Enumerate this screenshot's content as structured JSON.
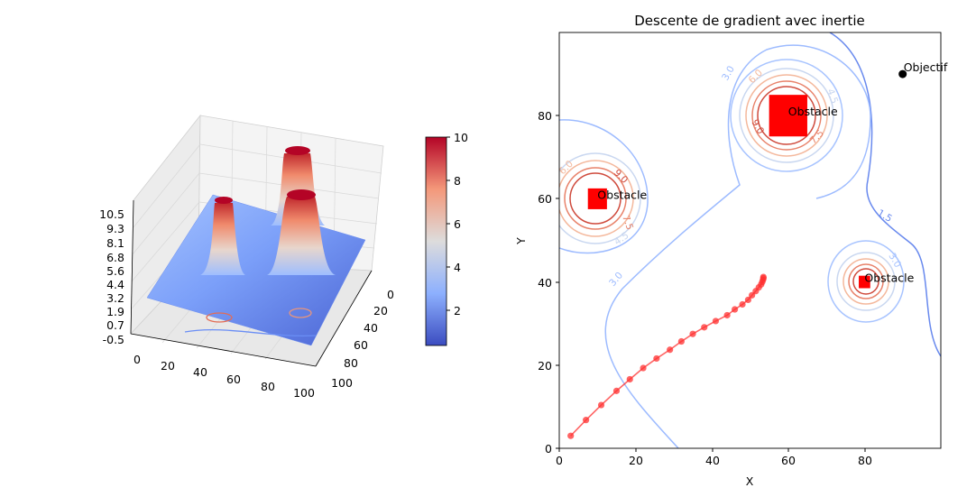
{
  "chart_data": [
    {
      "type": "surface3d",
      "title": "",
      "z_ticks": [
        "10.5",
        "9.3",
        "8.1",
        "6.8",
        "5.6",
        "4.4",
        "3.2",
        "1.9",
        "0.7",
        "-0.5"
      ],
      "x_ticks": [
        "0",
        "20",
        "40",
        "60",
        "80",
        "100"
      ],
      "y_ticks": [
        "0",
        "20",
        "40",
        "60",
        "80",
        "100"
      ],
      "xlim": [
        0,
        100
      ],
      "ylim": [
        0,
        100
      ],
      "zlim": [
        -0.5,
        10.5
      ],
      "colormap": "coolwarm",
      "colorbar": {
        "ticks": [
          "2",
          "4",
          "6",
          "8",
          "10"
        ],
        "range": [
          0.5,
          10
        ]
      },
      "peaks": [
        {
          "x": 10,
          "y": 60,
          "height": 10
        },
        {
          "x": 60,
          "y": 80,
          "height": 10
        },
        {
          "x": 80,
          "y": 40,
          "height": 10
        }
      ]
    },
    {
      "type": "line",
      "title": "Descente de gradient avec inertie",
      "xlabel": "X",
      "ylabel": "Y",
      "xlim": [
        0,
        100
      ],
      "ylim": [
        0,
        100
      ],
      "x_ticks": [
        "0",
        "20",
        "40",
        "60",
        "80"
      ],
      "y_ticks": [
        "0",
        "20",
        "40",
        "60",
        "80"
      ],
      "contour_labels": [
        "3.0",
        "4.5",
        "6.0",
        "7.5",
        "9.0",
        "1.5"
      ],
      "obstacles": [
        {
          "label": "Obstacle",
          "x": 10,
          "y": 60,
          "size": 5
        },
        {
          "label": "Obstacle",
          "x": 60,
          "y": 80,
          "size": 10
        },
        {
          "label": "Obstacle",
          "x": 80,
          "y": 40,
          "size": 3
        }
      ],
      "goal": {
        "label": "Objectif",
        "x": 90,
        "y": 90
      },
      "path": {
        "x": [
          3,
          7,
          11,
          15,
          18.5,
          22,
          25.5,
          29,
          32,
          35,
          38,
          41,
          44,
          46,
          48,
          49.5,
          50.5,
          51.5,
          52.3,
          52.9,
          53.2,
          53.4,
          53.5,
          53.5
        ],
        "y": [
          3,
          6.8,
          10.4,
          13.8,
          16.6,
          19.3,
          21.6,
          23.7,
          25.7,
          27.5,
          29.1,
          30.6,
          32,
          33.4,
          34.6,
          35.7,
          36.8,
          37.8,
          38.7,
          39.4,
          40,
          40.5,
          40.9,
          41.2
        ]
      },
      "colors": {
        "path": "#ff3030",
        "obstacle": "#ff0000",
        "goal": "#000000"
      }
    }
  ]
}
